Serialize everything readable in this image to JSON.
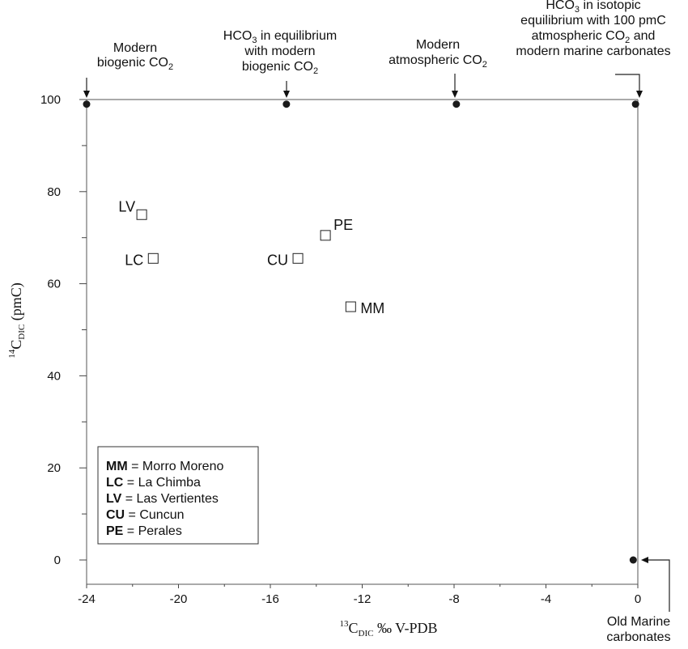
{
  "chart_data": {
    "type": "scatter",
    "xlabel": {
      "pre": "13",
      "main": "C",
      "sub": "DIC",
      "post": " ‰ V-PDB"
    },
    "ylabel": {
      "pre": "14",
      "main": "C",
      "sub": "DIC",
      "post": " (pmC)"
    },
    "xlim": [
      -24,
      0
    ],
    "ylim": [
      0,
      100
    ],
    "xticks": [
      "-24",
      "-20",
      "-16",
      "-12",
      "-8",
      "-4",
      "0"
    ],
    "yticks": [
      "0",
      "20",
      "40",
      "60",
      "80",
      "100"
    ],
    "grid": false,
    "points": [
      {
        "label": "MM",
        "x": -12.5,
        "y": 55
      },
      {
        "label": "LC",
        "x": -21.1,
        "y": 65.5
      },
      {
        "label": "LV",
        "x": -21.6,
        "y": 75
      },
      {
        "label": "CU",
        "x": -14.8,
        "y": 65.5
      },
      {
        "label": "PE",
        "x": -13.6,
        "y": 70.5
      }
    ],
    "reference_points": [
      {
        "x": -24,
        "y": 99
      },
      {
        "x": -15.3,
        "y": 99
      },
      {
        "x": -7.9,
        "y": 99
      },
      {
        "x": -0.1,
        "y": 99
      },
      {
        "x": -0.2,
        "y": 0
      }
    ],
    "annotations": [
      {
        "lines": [
          {
            "t": "Modern"
          },
          {
            "t": "biogenic CO",
            "sub": "2"
          }
        ]
      },
      {
        "lines": [
          {
            "t": "HCO",
            "sub": "3",
            "after": " in equilibrium"
          },
          {
            "t": "with modern"
          },
          {
            "t": "biogenic CO",
            "sub": "2"
          }
        ]
      },
      {
        "lines": [
          {
            "t": "Modern"
          },
          {
            "t": "atmospheric CO",
            "sub": "2"
          }
        ]
      },
      {
        "lines": [
          {
            "t": "HCO",
            "sub": "3",
            "after": " in isotopic"
          },
          {
            "t": "equilibrium with 100 pmC"
          },
          {
            "t": "atmospheric CO",
            "sub": "2",
            "after": " and"
          },
          {
            "t": "modern marine carbonates"
          }
        ]
      },
      {
        "lines": [
          {
            "t": "Old Marine"
          },
          {
            "t": "carbonates"
          }
        ]
      }
    ],
    "legend": {
      "position": "bottom-left",
      "entries": [
        {
          "code": "MM",
          "name": " = Morro Moreno"
        },
        {
          "code": "LC",
          "name": " = La Chimba"
        },
        {
          "code": "LV",
          "name": " = Las Vertientes"
        },
        {
          "code": "CU",
          "name": " = Cuncun"
        },
        {
          "code": "PE",
          "name": " = Perales"
        }
      ]
    }
  }
}
